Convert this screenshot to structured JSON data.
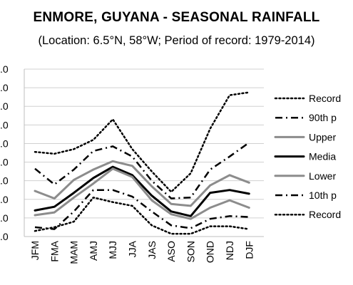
{
  "chart_data": {
    "type": "line",
    "title": "ENMORE, GUYANA - SEASONAL RAINFALL",
    "subtitle": "(Location: 6.5°N, 58°W; Period of record: 1979-2014)",
    "xlabel": "",
    "ylabel": "",
    "categories": [
      "JFM",
      "FMA",
      "MAM",
      "AMJ",
      "MJJ",
      "JJA",
      "JAS",
      "ASO",
      "SON",
      "OND",
      "NDJ",
      "DJF"
    ],
    "y_tick_labels": [
      ".0",
      ".0",
      ".0",
      ".0",
      ".0",
      ".0",
      ".0",
      ".0",
      ".0",
      ".0"
    ],
    "ylim": [
      0,
      9
    ],
    "grid": "horizontal",
    "legend_position": "right",
    "series": [
      {
        "name": "Record",
        "style": "dotted-black",
        "values": [
          4.55,
          4.45,
          4.7,
          5.2,
          6.3,
          4.7,
          3.5,
          2.4,
          3.4,
          5.8,
          7.6,
          7.75
        ]
      },
      {
        "name": "90th p",
        "style": "dashdot-black",
        "values": [
          3.65,
          2.8,
          3.6,
          4.6,
          4.85,
          4.3,
          3.0,
          2.05,
          2.1,
          3.6,
          4.3,
          5.05
        ]
      },
      {
        "name": "Upper",
        "style": "solid-gray",
        "values": [
          2.45,
          2.05,
          3.05,
          3.6,
          4.05,
          3.8,
          2.7,
          1.75,
          1.65,
          2.75,
          3.3,
          2.9
        ]
      },
      {
        "name": "Media",
        "style": "solid-black",
        "values": [
          1.4,
          1.6,
          2.35,
          3.15,
          3.75,
          3.3,
          2.2,
          1.35,
          1.1,
          2.35,
          2.5,
          2.3
        ]
      },
      {
        "name": "Lower",
        "style": "solid-gray",
        "values": [
          1.15,
          1.3,
          2.1,
          2.85,
          3.65,
          3.2,
          1.95,
          1.2,
          0.95,
          1.55,
          1.95,
          1.55
        ]
      },
      {
        "name": "10th p",
        "style": "dashdot-black",
        "values": [
          0.5,
          0.4,
          1.35,
          2.5,
          2.5,
          2.15,
          1.35,
          0.6,
          0.45,
          0.95,
          1.1,
          1.05
        ]
      },
      {
        "name": "Record",
        "style": "dotted-black",
        "values": [
          0.3,
          0.5,
          0.8,
          2.1,
          1.85,
          1.65,
          0.6,
          0.15,
          0.15,
          0.55,
          0.55,
          0.4
        ]
      }
    ]
  },
  "colors": {
    "black": "#000000",
    "gray": "#8c8c8c",
    "grid": "#d0d0d0"
  }
}
